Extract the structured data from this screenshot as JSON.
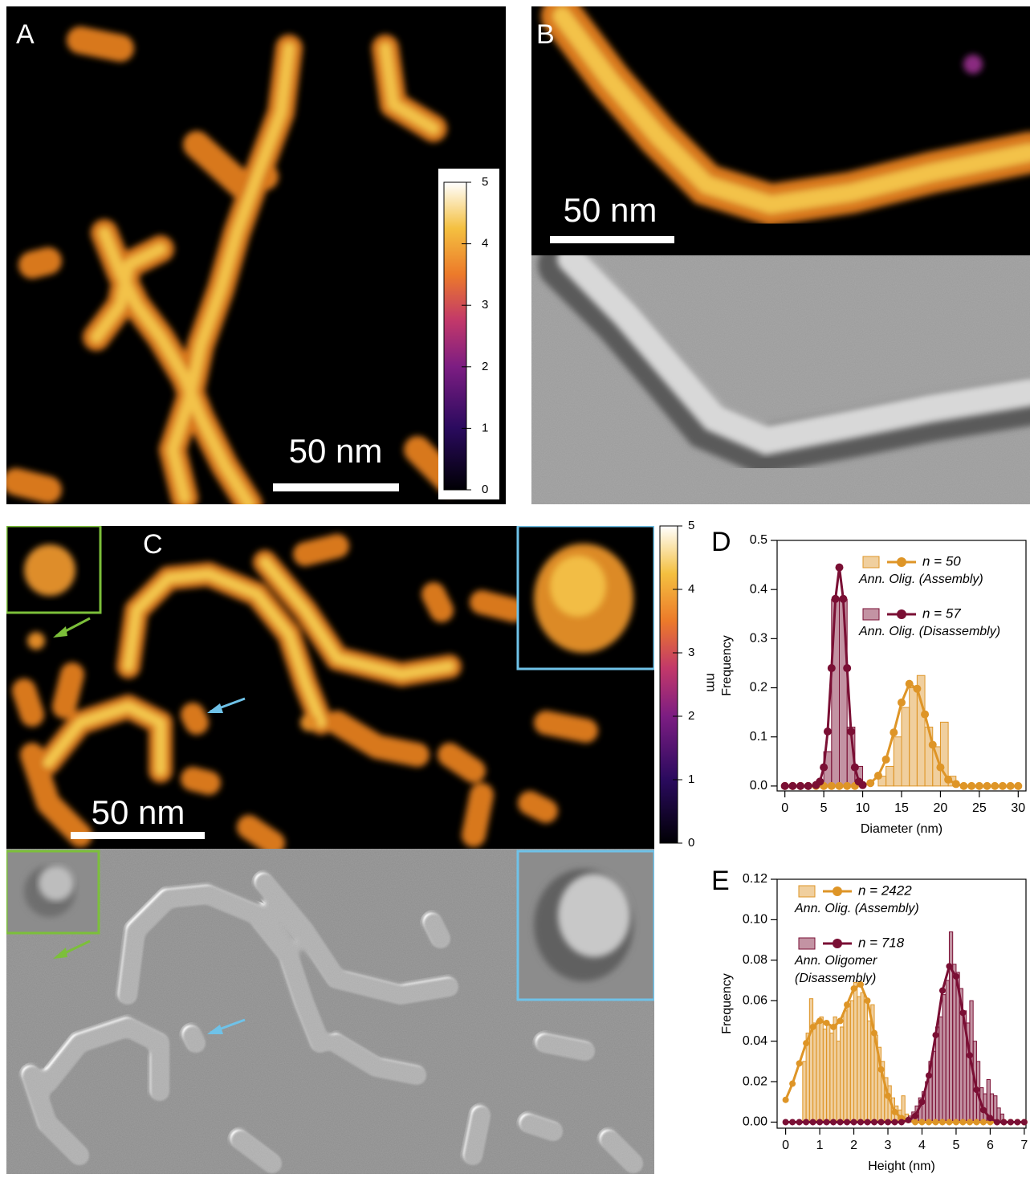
{
  "panels": {
    "A": {
      "label": "A",
      "scale_bar": "50 nm",
      "colorbar": {
        "lim": [
          0,
          5
        ],
        "ticks": [
          0,
          1,
          2,
          3,
          4,
          5
        ]
      }
    },
    "B": {
      "label": "B",
      "scale_bar": "50 nm"
    },
    "C": {
      "label": "C",
      "scale_bar": "50 nm",
      "colorbar": {
        "lim": [
          0,
          5
        ],
        "ticks": [
          0,
          1,
          2,
          3,
          4,
          5
        ],
        "unit": "nm"
      }
    }
  },
  "chart_data": [
    {
      "type": "histogram",
      "label": "D",
      "xlabel": "Diameter (nm)",
      "ylabel": "Frequency",
      "xlim": [
        -1,
        31
      ],
      "xticks": [
        0,
        5,
        10,
        15,
        20,
        25,
        30
      ],
      "ylim": [
        -0.01,
        0.5
      ],
      "yticks": [
        {
          "value": 0,
          "label": "0.0"
        },
        0.1,
        0.2,
        0.3,
        0.4,
        0.5
      ],
      "series": [
        {
          "name": "n = 50",
          "description": [
            "Ann. Olig. (Assembly)"
          ],
          "color": "#de9527",
          "bins": [
            12,
            13,
            14,
            15,
            16,
            17,
            18,
            19,
            20,
            21,
            22
          ],
          "values": [
            0.02,
            0.04,
            0.1,
            0.16,
            0.2,
            0.225,
            0.12,
            0.08,
            0.13,
            0.02
          ],
          "fit": {
            "x": [
              0,
              1,
              2,
              3,
              4,
              5,
              6,
              7,
              8,
              9,
              10,
              11,
              12,
              13,
              14,
              15,
              16,
              17,
              18,
              19,
              20,
              21,
              22,
              23,
              24,
              25,
              26,
              27,
              28,
              29,
              30
            ],
            "values": [
              0,
              0,
              0,
              0,
              0,
              0,
              0,
              0,
              0,
              0,
              0.002,
              0.006,
              0.021,
              0.054,
              0.109,
              0.17,
              0.208,
              0.198,
              0.146,
              0.084,
              0.038,
              0.013,
              0.004,
              0,
              0,
              0,
              0,
              0,
              0,
              0,
              0
            ]
          }
        },
        {
          "name": "n = 57",
          "description": [
            "Ann. Olig. (Disassembly)"
          ],
          "color": "#7a0f34",
          "bins": [
            5,
            6,
            7,
            8,
            9,
            10
          ],
          "values": [
            0.07,
            0.38,
            0.38,
            0.12,
            0.04
          ],
          "fit": {
            "x": [
              0,
              1,
              2,
              3,
              4,
              4.5,
              5,
              5.5,
              6,
              6.5,
              7,
              7.5,
              8,
              8.5,
              9,
              9.5,
              10
            ],
            "values": [
              0,
              0,
              0,
              0,
              0.002,
              0.009,
              0.038,
              0.111,
              0.24,
              0.381,
              0.445,
              0.381,
              0.24,
              0.111,
              0.038,
              0.009,
              0.002
            ]
          }
        }
      ]
    },
    {
      "type": "histogram",
      "label": "E",
      "xlabel": "Height (nm)",
      "ylabel": "Frequency",
      "xlim": [
        -0.25,
        7.05
      ],
      "xticks": [
        0,
        1,
        2,
        3,
        4,
        5,
        6,
        7
      ],
      "ylim": [
        -0.003,
        0.12
      ],
      "yticks": [
        {
          "value": 0,
          "label": "0.00"
        },
        0.02,
        0.04,
        0.06,
        0.08,
        {
          "value": 0.1,
          "label": "0.10"
        },
        0.12
      ],
      "series": [
        {
          "name": "n = 2422",
          "description": [
            "Ann. Olig. (Assembly)"
          ],
          "color": "#de9527",
          "bins": [
            0.5,
            0.6,
            0.7,
            0.8,
            0.9,
            1.0,
            1.1,
            1.2,
            1.3,
            1.4,
            1.5,
            1.6,
            1.7,
            1.8,
            1.9,
            2.0,
            2.1,
            2.2,
            2.3,
            2.4,
            2.5,
            2.6,
            2.7,
            2.8,
            2.9,
            3.0,
            3.1,
            3.2,
            3.3,
            3.4,
            3.5,
            3.6
          ],
          "values": [
            0.03,
            0.044,
            0.061,
            0.049,
            0.05,
            0.052,
            0.046,
            0.048,
            0.044,
            0.052,
            0.04,
            0.047,
            0.055,
            0.057,
            0.06,
            0.069,
            0.062,
            0.064,
            0.06,
            0.05,
            0.058,
            0.043,
            0.037,
            0.03,
            0.022,
            0.018,
            0.012,
            0.008,
            0.006,
            0.013,
            0.004
          ],
          "fit": {
            "x": [
              0,
              0.2,
              0.4,
              0.6,
              0.8,
              1.0,
              1.2,
              1.4,
              1.6,
              1.8,
              2.0,
              2.2,
              2.4,
              2.6,
              2.8,
              3.0,
              3.2,
              3.4,
              3.6,
              3.8,
              4.0,
              4.2,
              4.4,
              4.6,
              4.8,
              5.0,
              5.2,
              5.4,
              5.6,
              5.8,
              6.0,
              6.2,
              6.4,
              6.6,
              6.8,
              7.0
            ],
            "values": [
              0.011,
              0.019,
              0.029,
              0.039,
              0.047,
              0.05,
              0.049,
              0.047,
              0.05,
              0.058,
              0.066,
              0.068,
              0.06,
              0.044,
              0.026,
              0.013,
              0.005,
              0.002,
              0.001,
              0,
              0,
              0,
              0,
              0,
              0,
              0,
              0,
              0,
              0,
              0,
              0,
              0,
              0,
              0,
              0,
              0
            ]
          }
        },
        {
          "name": "n = 718",
          "description": [
            "Ann. Oligomer",
            "(Disassembly)"
          ],
          "color": "#7a0f34",
          "bins": [
            3.6,
            3.7,
            3.8,
            3.9,
            4.0,
            4.1,
            4.2,
            4.3,
            4.4,
            4.5,
            4.6,
            4.7,
            4.8,
            4.9,
            5.0,
            5.1,
            5.2,
            5.3,
            5.4,
            5.5,
            5.6,
            5.7,
            5.8,
            5.9,
            6.0,
            6.1,
            6.2,
            6.3,
            6.4
          ],
          "values": [
            0.003,
            0.005,
            0.008,
            0.012,
            0.015,
            0.02,
            0.03,
            0.035,
            0.047,
            0.052,
            0.063,
            0.07,
            0.094,
            0.078,
            0.074,
            0.066,
            0.055,
            0.049,
            0.06,
            0.04,
            0.03,
            0.017,
            0.014,
            0.021,
            0.014,
            0.013,
            0.007,
            0.004
          ],
          "fit": {
            "x": [
              0,
              0.2,
              0.4,
              0.6,
              0.8,
              1.0,
              1.2,
              1.4,
              1.6,
              1.8,
              2.0,
              2.2,
              2.4,
              2.6,
              2.8,
              3.0,
              3.2,
              3.4,
              3.6,
              3.8,
              4.0,
              4.2,
              4.4,
              4.6,
              4.8,
              5.0,
              5.2,
              5.4,
              5.6,
              5.8,
              6.0,
              6.2,
              6.4,
              6.6,
              6.8,
              7.0
            ],
            "values": [
              0,
              0,
              0,
              0,
              0,
              0,
              0,
              0,
              0,
              0,
              0,
              0,
              0,
              0,
              0,
              0,
              0,
              0,
              0.001,
              0.003,
              0.01,
              0.023,
              0.043,
              0.065,
              0.077,
              0.072,
              0.054,
              0.033,
              0.016,
              0.006,
              0.002,
              0,
              0,
              0,
              0,
              0
            ]
          }
        }
      ]
    }
  ]
}
